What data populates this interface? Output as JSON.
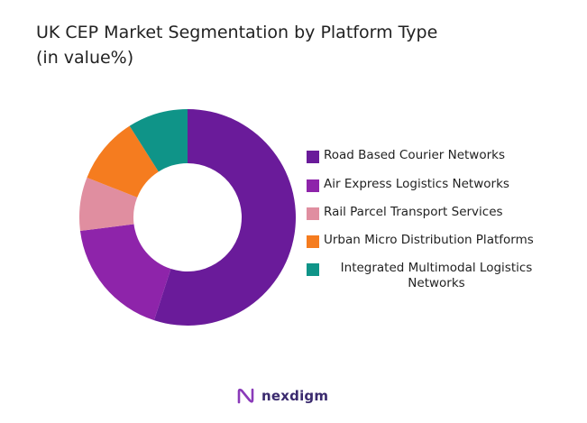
{
  "title_line1": "UK CEP Market Segmentation by Platform Type",
  "title_line2": "(in value%)",
  "logo_text": "nexdigm",
  "chart_data": {
    "type": "pie",
    "subtype": "donut",
    "title": "UK CEP Market Segmentation by Platform Type (in value%)",
    "categories": [
      "Road Based Courier Networks",
      "Air Express Logistics Networks",
      "Rail Parcel Transport Services",
      "Urban Micro Distribution Platforms",
      "Integrated Multimodal Logistics Networks"
    ],
    "values": [
      55,
      18,
      8,
      10,
      9
    ],
    "colors": [
      "#6a1b9a",
      "#8e24aa",
      "#e08ea0",
      "#f57c1f",
      "#0f9488"
    ],
    "legend_position": "right",
    "start_angle": "top",
    "direction": "clockwise"
  }
}
